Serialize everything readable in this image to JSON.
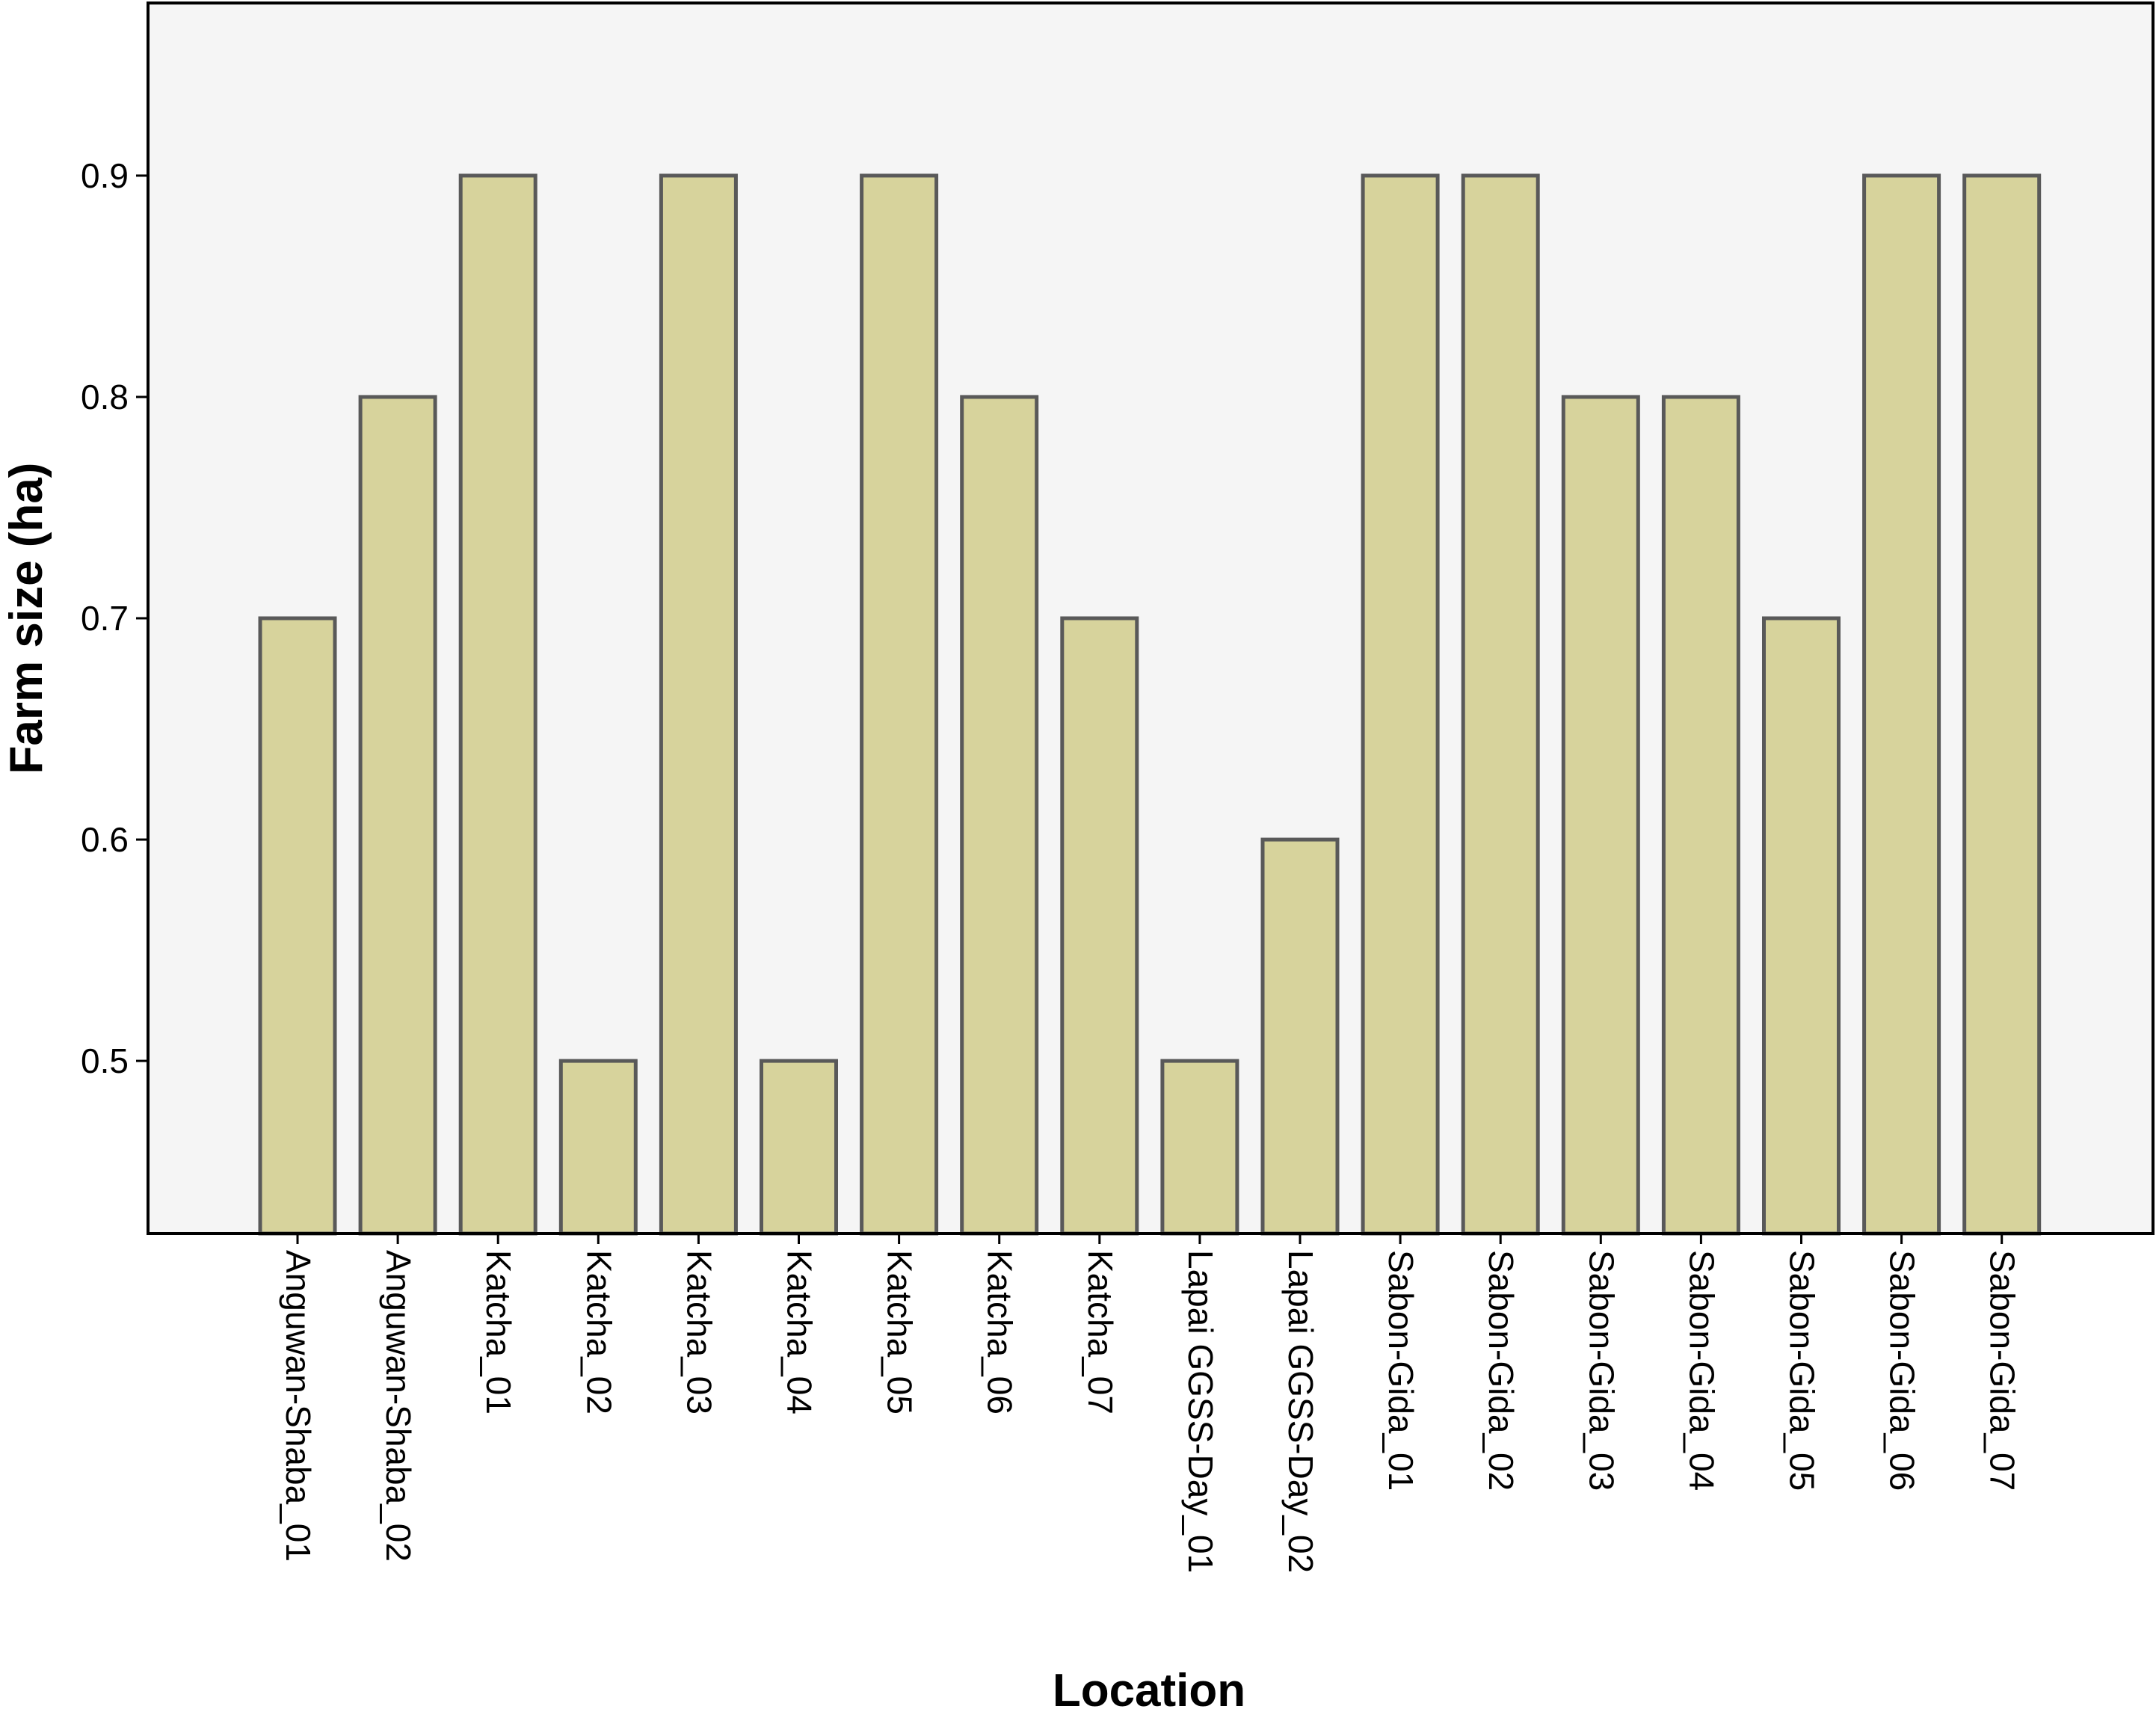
{
  "chart_data": {
    "type": "bar",
    "title": "",
    "xlabel": "Location",
    "ylabel": "Farm size (ha)",
    "ylim": [
      0.422,
      0.978
    ],
    "yticks": [
      0.5,
      0.6,
      0.7,
      0.8,
      0.9
    ],
    "ytick_labels": [
      "0.5",
      "0.6",
      "0.7",
      "0.8",
      "0.9"
    ],
    "grid": false,
    "legend": "none",
    "categories": [
      "Anguwan-Shaba_01",
      "Anguwan-Shaba_02",
      "Katcha_01",
      "Katcha_02",
      "Katcha_03",
      "Katcha_04",
      "Katcha_05",
      "Katcha_06",
      "Katcha_07",
      "Lapai GGSS-Day_01",
      "Lapai GGSS-Day_02",
      "Sabon-Gida_01",
      "Sabon-Gida_02",
      "Sabon-Gida_03",
      "Sabon-Gida_04",
      "Sabon-Gida_05",
      "Sabon-Gida_06",
      "Sabon-Gida_07"
    ],
    "values": [
      0.7,
      0.8,
      0.9,
      0.5,
      0.9,
      0.5,
      0.9,
      0.8,
      0.7,
      0.5,
      0.6,
      0.9,
      0.9,
      0.8,
      0.8,
      0.7,
      0.9,
      0.9
    ],
    "colors": {
      "bar_fill": "#d7d39c",
      "bar_stroke": "#595959",
      "plot_background": "#f5f5f5",
      "frame": "#000000"
    }
  }
}
